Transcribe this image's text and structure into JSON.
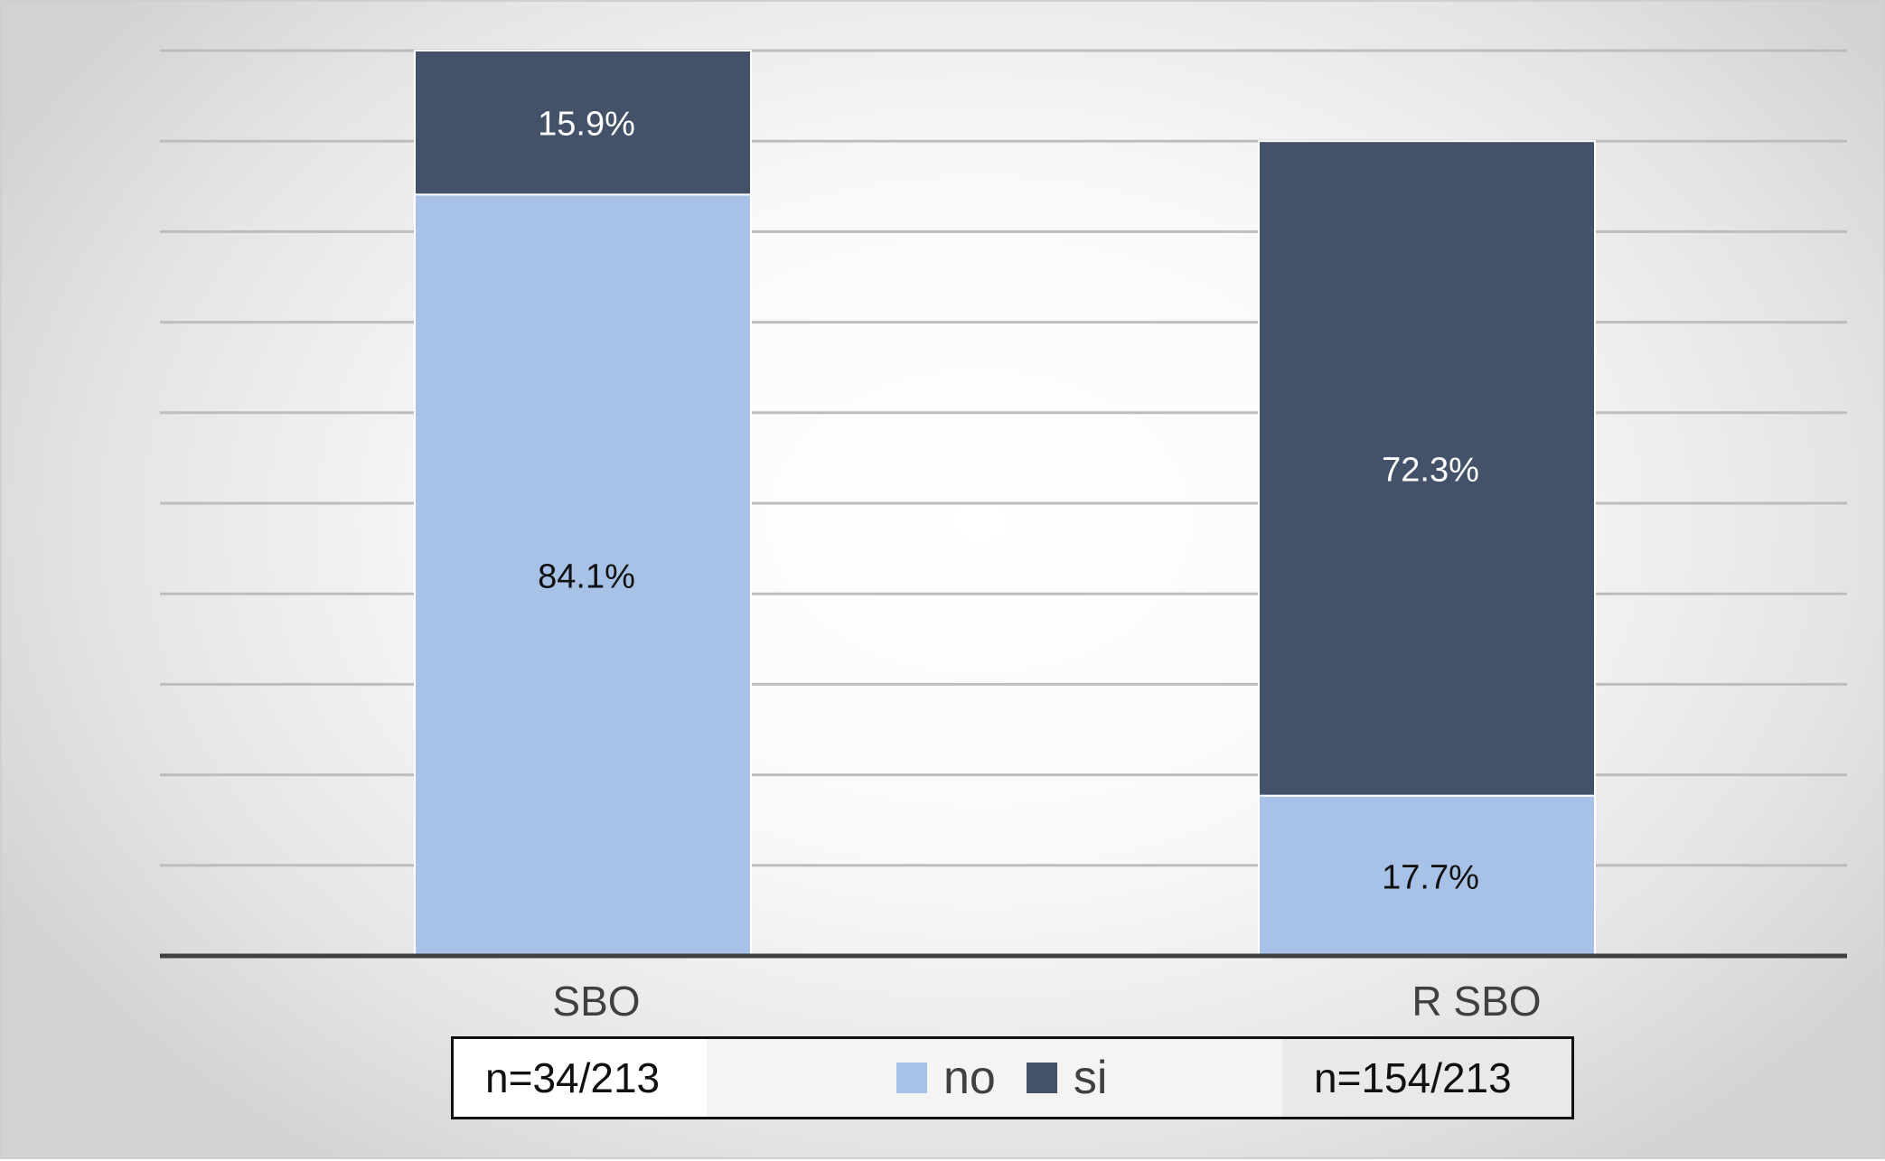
{
  "chart_data": {
    "type": "bar",
    "stacked": true,
    "categories": [
      "SBO",
      "R SBO"
    ],
    "series": [
      {
        "name": "no",
        "values": [
          84.1,
          17.7
        ],
        "labels": [
          "84.1%",
          "17.7%"
        ],
        "color": "#a7c2e6",
        "label_color": "#111111"
      },
      {
        "name": "si",
        "values": [
          15.9,
          72.3
        ],
        "labels": [
          "15.9%",
          "72.3%"
        ],
        "color": "#435269",
        "label_color": "#ffffff"
      }
    ],
    "ylim": [
      0,
      100
    ],
    "grid": true,
    "legend_position": "bottom",
    "annotations": [
      "n=34/213",
      "n=154/213"
    ]
  },
  "legend": {
    "items": [
      {
        "label": "no",
        "color": "#a7c2e6"
      },
      {
        "label": "si",
        "color": "#435269"
      }
    ],
    "n_left": "n=34/213",
    "n_right": "n=154/213"
  }
}
